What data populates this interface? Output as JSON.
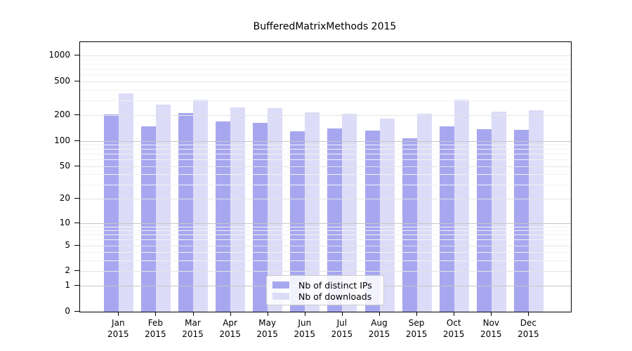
{
  "title": "BufferedMatrixMethods 2015",
  "colors": {
    "distinct_ips_bar": "#a7a7f0",
    "downloads_bar": "#dcdcf8",
    "grid_decade": "#c6c6c6",
    "grid_labeled": "#e4e4e4",
    "grid_minor": "#f2f2f2",
    "axis": "#000000"
  },
  "legend": {
    "items": [
      {
        "label": "Nb of distinct IPs",
        "color": "#a7a7f0"
      },
      {
        "label": "Nb of downloads",
        "color": "#dcdcf8"
      }
    ]
  },
  "chart_data": {
    "type": "bar",
    "title": "BufferedMatrixMethods 2015",
    "categories": [
      "Jan",
      "Feb",
      "Mar",
      "Apr",
      "May",
      "Jun",
      "Jul",
      "Aug",
      "Sep",
      "Oct",
      "Nov",
      "Dec"
    ],
    "x_tick_second_line": "2015",
    "series": [
      {
        "name": "Nb of distinct IPs",
        "color": "#a7a7f0",
        "values": [
          205,
          149,
          213,
          168,
          164,
          129,
          140,
          131,
          108,
          147,
          137,
          135
        ]
      },
      {
        "name": "Nb of downloads",
        "color": "#dcdcf8",
        "values": [
          360,
          268,
          303,
          248,
          245,
          215,
          207,
          182,
          210,
          308,
          222,
          229
        ]
      }
    ],
    "xlabel": "",
    "ylabel": "",
    "yscale": "log1p",
    "ylim": [
      0,
      1450
    ],
    "y_ticks": [
      0,
      1,
      2,
      5,
      10,
      20,
      50,
      100,
      200,
      500,
      1000
    ],
    "y_minor_ticks": [
      3,
      4,
      6,
      7,
      8,
      9,
      30,
      40,
      60,
      70,
      80,
      90,
      300,
      400,
      600,
      700,
      800,
      900
    ],
    "grid": "horizontal",
    "legend_position": "lower-center"
  }
}
